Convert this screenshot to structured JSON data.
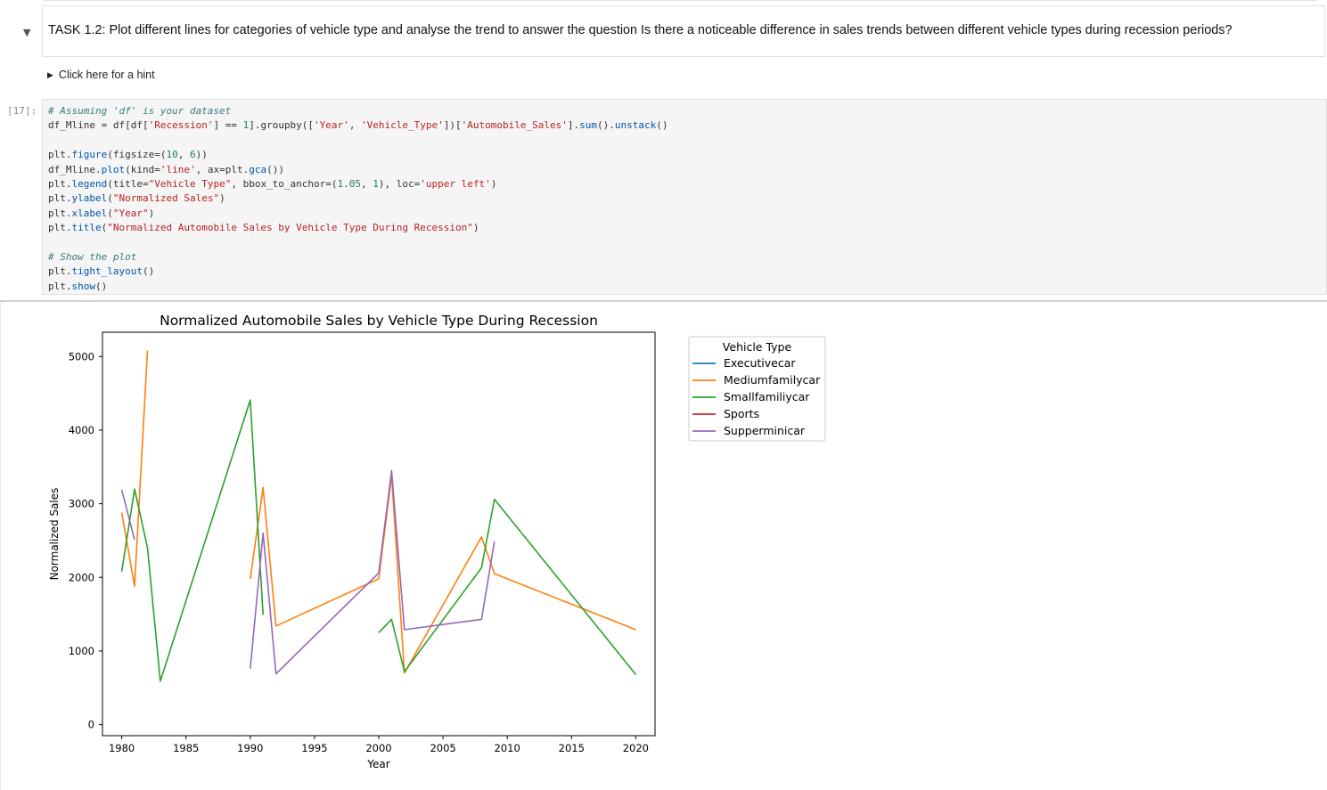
{
  "task": {
    "title": "TASK 1.2: Plot different lines for categories of vehicle type and analyse the trend to answer the question Is there a noticeable difference in sales trends between different vehicle types during recession periods?",
    "hint": "Click here for a hint",
    "collapse_icon": "chevron-down-icon",
    "hint_icon": "triangle-right-icon"
  },
  "cell": {
    "prompt": "[17]:",
    "code_lines": [
      [
        [
          "c",
          "# Assuming 'df' is your dataset"
        ]
      ],
      [
        [
          "t",
          "df_Mline = df[df["
        ],
        [
          "s",
          "'Recession'"
        ],
        [
          "t",
          "] == "
        ],
        [
          "n",
          "1"
        ],
        [
          "t",
          "].groupby(["
        ],
        [
          "s",
          "'Year'"
        ],
        [
          "t",
          ", "
        ],
        [
          "s",
          "'Vehicle_Type'"
        ],
        [
          "t",
          "])["
        ],
        [
          "s",
          "'Automobile_Sales'"
        ],
        [
          "t",
          "]."
        ],
        [
          "f",
          "sum"
        ],
        [
          "t",
          "()."
        ],
        [
          "f",
          "unstack"
        ],
        [
          "t",
          "()"
        ]
      ],
      [],
      [
        [
          "t",
          "plt."
        ],
        [
          "f",
          "figure"
        ],
        [
          "t",
          "(figsize=("
        ],
        [
          "n",
          "10"
        ],
        [
          "t",
          ", "
        ],
        [
          "n",
          "6"
        ],
        [
          "t",
          "))"
        ]
      ],
      [
        [
          "t",
          "df_Mline."
        ],
        [
          "f",
          "plot"
        ],
        [
          "t",
          "(kind="
        ],
        [
          "s",
          "'line'"
        ],
        [
          "t",
          ", ax=plt."
        ],
        [
          "f",
          "gca"
        ],
        [
          "t",
          "())"
        ]
      ],
      [
        [
          "t",
          "plt."
        ],
        [
          "f",
          "legend"
        ],
        [
          "t",
          "(title="
        ],
        [
          "s",
          "\"Vehicle Type\""
        ],
        [
          "t",
          ", bbox_to_anchor=("
        ],
        [
          "n",
          "1.05"
        ],
        [
          "t",
          ", "
        ],
        [
          "n",
          "1"
        ],
        [
          "t",
          "), loc="
        ],
        [
          "s",
          "'upper left'"
        ],
        [
          "t",
          ")"
        ]
      ],
      [
        [
          "t",
          "plt."
        ],
        [
          "f",
          "ylabel"
        ],
        [
          "t",
          "("
        ],
        [
          "s",
          "\"Normalized Sales\""
        ],
        [
          "t",
          ")"
        ]
      ],
      [
        [
          "t",
          "plt."
        ],
        [
          "f",
          "xlabel"
        ],
        [
          "t",
          "("
        ],
        [
          "s",
          "\"Year\""
        ],
        [
          "t",
          ")"
        ]
      ],
      [
        [
          "t",
          "plt."
        ],
        [
          "f",
          "title"
        ],
        [
          "t",
          "("
        ],
        [
          "s",
          "\"Normalized Automobile Sales by Vehicle Type During Recession\""
        ],
        [
          "t",
          ")"
        ]
      ],
      [],
      [
        [
          "c",
          "# Show the plot"
        ]
      ],
      [
        [
          "t",
          "plt."
        ],
        [
          "f",
          "tight_layout"
        ],
        [
          "t",
          "()"
        ]
      ],
      [
        [
          "t",
          "plt."
        ],
        [
          "f",
          "show"
        ],
        [
          "t",
          "()"
        ]
      ]
    ]
  },
  "chart_data": {
    "type": "line",
    "title": "Normalized Automobile Sales by Vehicle Type During Recession",
    "xlabel": "Year",
    "ylabel": "Normalized Sales",
    "xlim": [
      1978.5,
      2021.5
    ],
    "ylim": [
      -150,
      5330
    ],
    "xticks": [
      1980,
      1985,
      1990,
      1995,
      2000,
      2005,
      2010,
      2015,
      2020
    ],
    "yticks": [
      0,
      1000,
      2000,
      3000,
      4000,
      5000
    ],
    "legend_title": "Vehicle Type",
    "legend_position": "outside-upper-left",
    "grid": false,
    "series": [
      {
        "name": "Executivecar",
        "color": "#1f77b4",
        "segments": []
      },
      {
        "name": "Mediumfamilycar",
        "color": "#ff7f0e",
        "segments": [
          [
            [
              1980,
              2880
            ],
            [
              1981,
              1880
            ],
            [
              1982,
              5080
            ]
          ],
          [
            [
              1990,
              1980
            ],
            [
              1991,
              3220
            ],
            [
              1992,
              1340
            ],
            [
              2000,
              1980
            ],
            [
              2001,
              3380
            ],
            [
              2002,
              700
            ],
            [
              2008,
              2550
            ],
            [
              2009,
              2050
            ],
            [
              2020,
              1290
            ]
          ]
        ]
      },
      {
        "name": "Smallfamiliycar",
        "color": "#2ca02c",
        "segments": [
          [
            [
              1980,
              2080
            ],
            [
              1981,
              3200
            ],
            [
              1982,
              2400
            ],
            [
              1983,
              590
            ],
            [
              1990,
              4410
            ],
            [
              1991,
              1490
            ]
          ],
          [
            [
              2000,
              1250
            ],
            [
              2001,
              1430
            ],
            [
              2002,
              720
            ],
            [
              2008,
              2130
            ],
            [
              2009,
              3060
            ],
            [
              2020,
              680
            ]
          ]
        ]
      },
      {
        "name": "Sports",
        "color": "#d62728",
        "segments": []
      },
      {
        "name": "Supperminicar",
        "color": "#9467bd",
        "segments": [
          [
            [
              1980,
              3190
            ],
            [
              1981,
              2510
            ]
          ],
          [
            [
              1990,
              760
            ],
            [
              1991,
              2600
            ],
            [
              1992,
              690
            ],
            [
              2000,
              2060
            ],
            [
              2001,
              3450
            ],
            [
              2002,
              1290
            ],
            [
              2008,
              1430
            ],
            [
              2009,
              2490
            ]
          ]
        ]
      }
    ]
  }
}
